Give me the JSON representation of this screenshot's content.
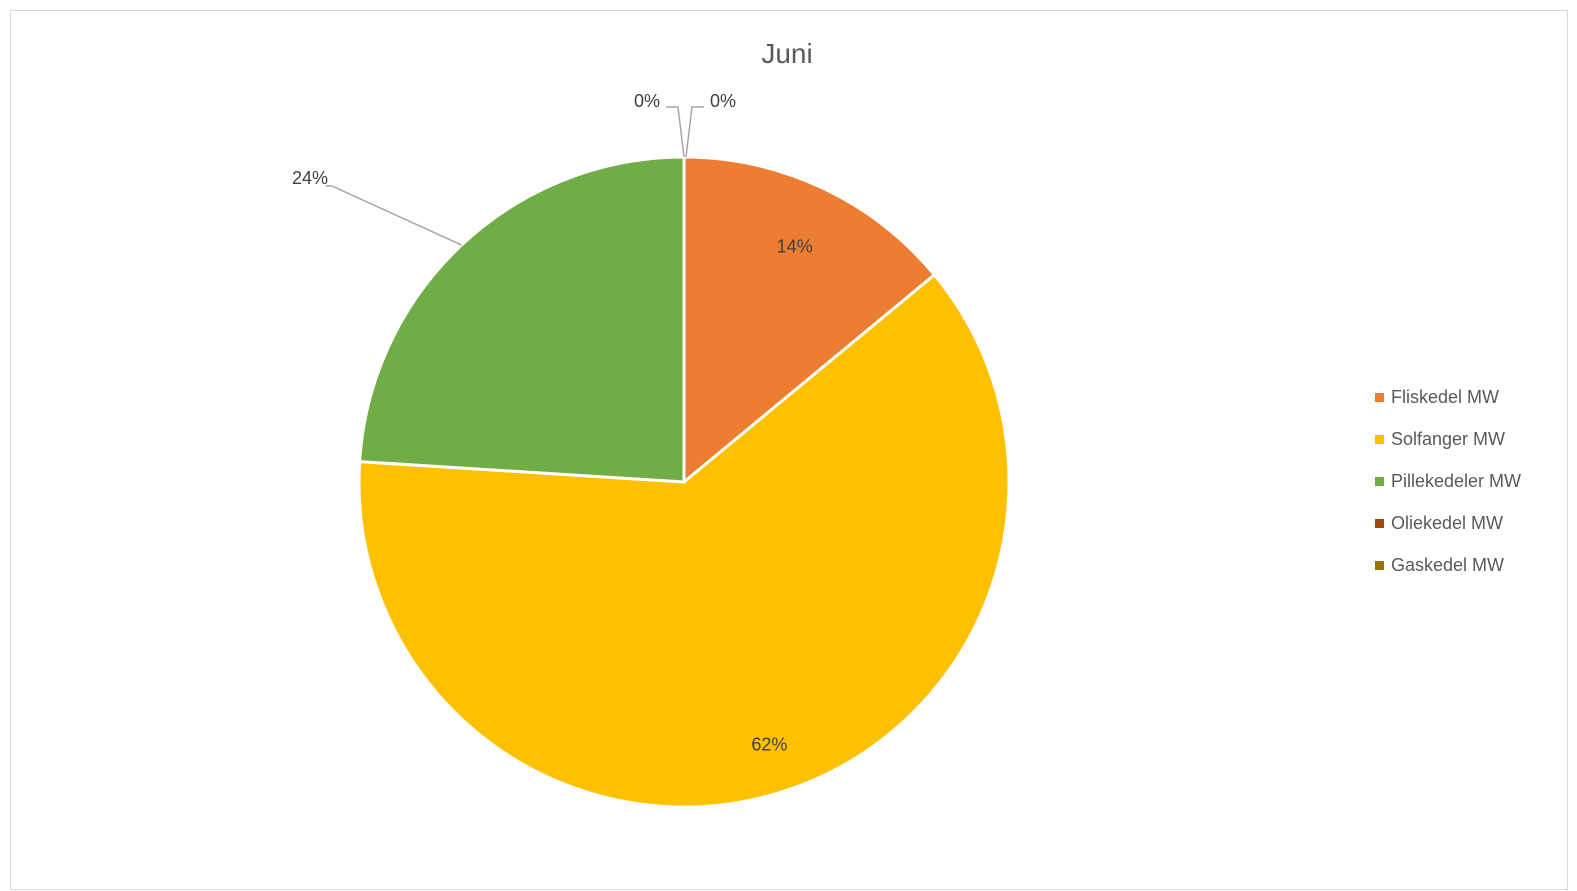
{
  "chart_data": {
    "type": "pie",
    "title": "Juni",
    "legend_position": "right",
    "series": [
      {
        "name": "Fliskedel MW",
        "value": 14,
        "label": "14%",
        "color": "#ED7D31"
      },
      {
        "name": "Solfanger MW",
        "value": 62,
        "label": "62%",
        "color": "#FFC000"
      },
      {
        "name": "Pillekedeler MW",
        "value": 24,
        "label": "24%",
        "color": "#70AD47"
      },
      {
        "name": "Oliekedel MW",
        "value": 0,
        "label": "0%",
        "color": "#9E480E"
      },
      {
        "name": "Gaskedel MW",
        "value": 0,
        "label": "0%",
        "color": "#997300"
      }
    ]
  }
}
